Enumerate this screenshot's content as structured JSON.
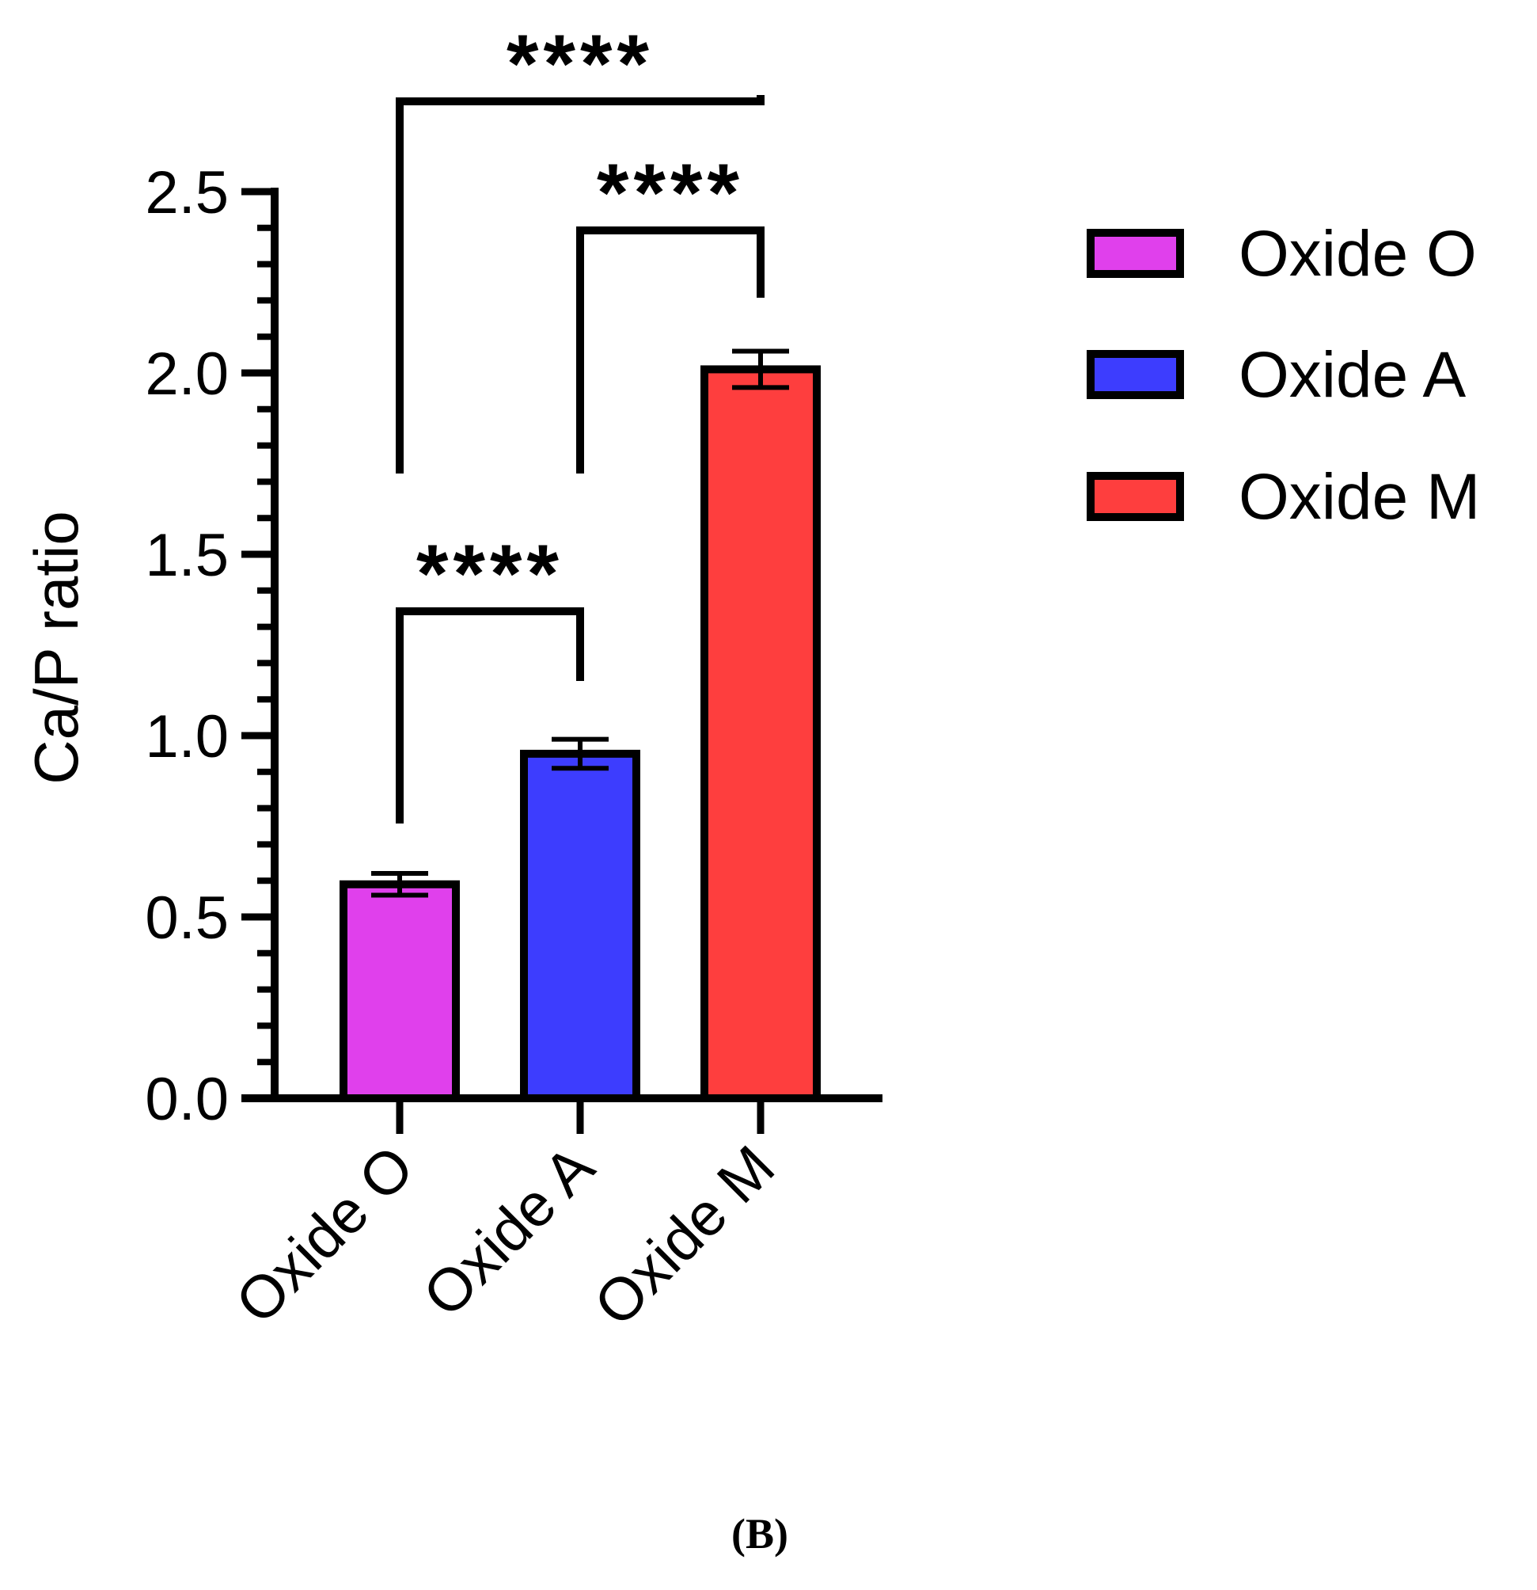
{
  "chart_data": {
    "type": "bar",
    "categories": [
      "Oxide O",
      "Oxide A",
      "Oxide M"
    ],
    "values": [
      0.59,
      0.95,
      2.01
    ],
    "errors": [
      0.03,
      0.04,
      0.05
    ],
    "colors": [
      "#e040ec",
      "#3d3dfe",
      "#fe3e3e"
    ],
    "ylabel": "Ca/P ratio",
    "xlabel": "",
    "ylim": [
      0,
      2.5
    ],
    "major_ticks": [
      0,
      0.5,
      1.0,
      1.5,
      2.0,
      2.5
    ],
    "tick_labels": [
      "0.0",
      "0.5",
      "1.0",
      "1.5",
      "2.0",
      "2.5"
    ],
    "minor_step": 0.1,
    "legend": {
      "position": "top-right",
      "entries": [
        "Oxide O",
        "Oxide A",
        "Oxide M"
      ]
    },
    "significance": [
      {
        "from": 0,
        "to": 1,
        "label": "****"
      },
      {
        "from": 1,
        "to": 2,
        "label": "****"
      },
      {
        "from": 0,
        "to": 2,
        "label": "****"
      }
    ]
  },
  "panel_label": "(B)"
}
